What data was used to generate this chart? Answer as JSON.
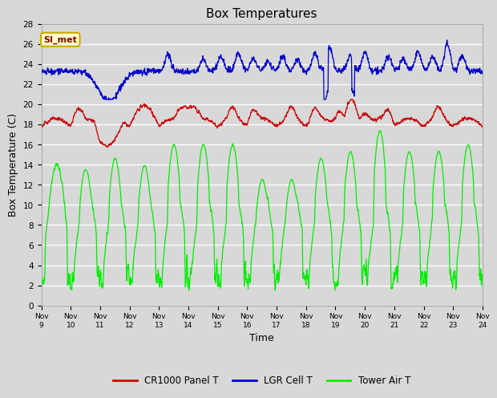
{
  "title": "Box Temperatures",
  "xlabel": "Time",
  "ylabel": "Box Temperature (C)",
  "ylim": [
    0,
    28
  ],
  "yticks": [
    0,
    2,
    4,
    6,
    8,
    10,
    12,
    14,
    16,
    18,
    20,
    22,
    24,
    26,
    28
  ],
  "xtick_labels": [
    "Nov 9",
    "Nov 10",
    "Nov 11",
    "Nov 12",
    "Nov 13",
    "Nov 14",
    "Nov 15",
    "Nov 16",
    "Nov 17",
    "Nov 18",
    "Nov 19",
    "Nov 20",
    "Nov 21",
    "Nov 22",
    "Nov 23",
    "Nov 24"
  ],
  "bg_color": "#d8d8d8",
  "plot_bg_color": "#d8d8d8",
  "grid_color": "#ffffff",
  "annotation_text": "SI_met",
  "annotation_bg": "#ffffcc",
  "annotation_border": "#ccaa00",
  "cr1000_color": "#cc0000",
  "lgr_color": "#0000cc",
  "tower_color": "#00ee00",
  "legend_labels": [
    "CR1000 Panel T",
    "LGR Cell T",
    "Tower Air T"
  ]
}
